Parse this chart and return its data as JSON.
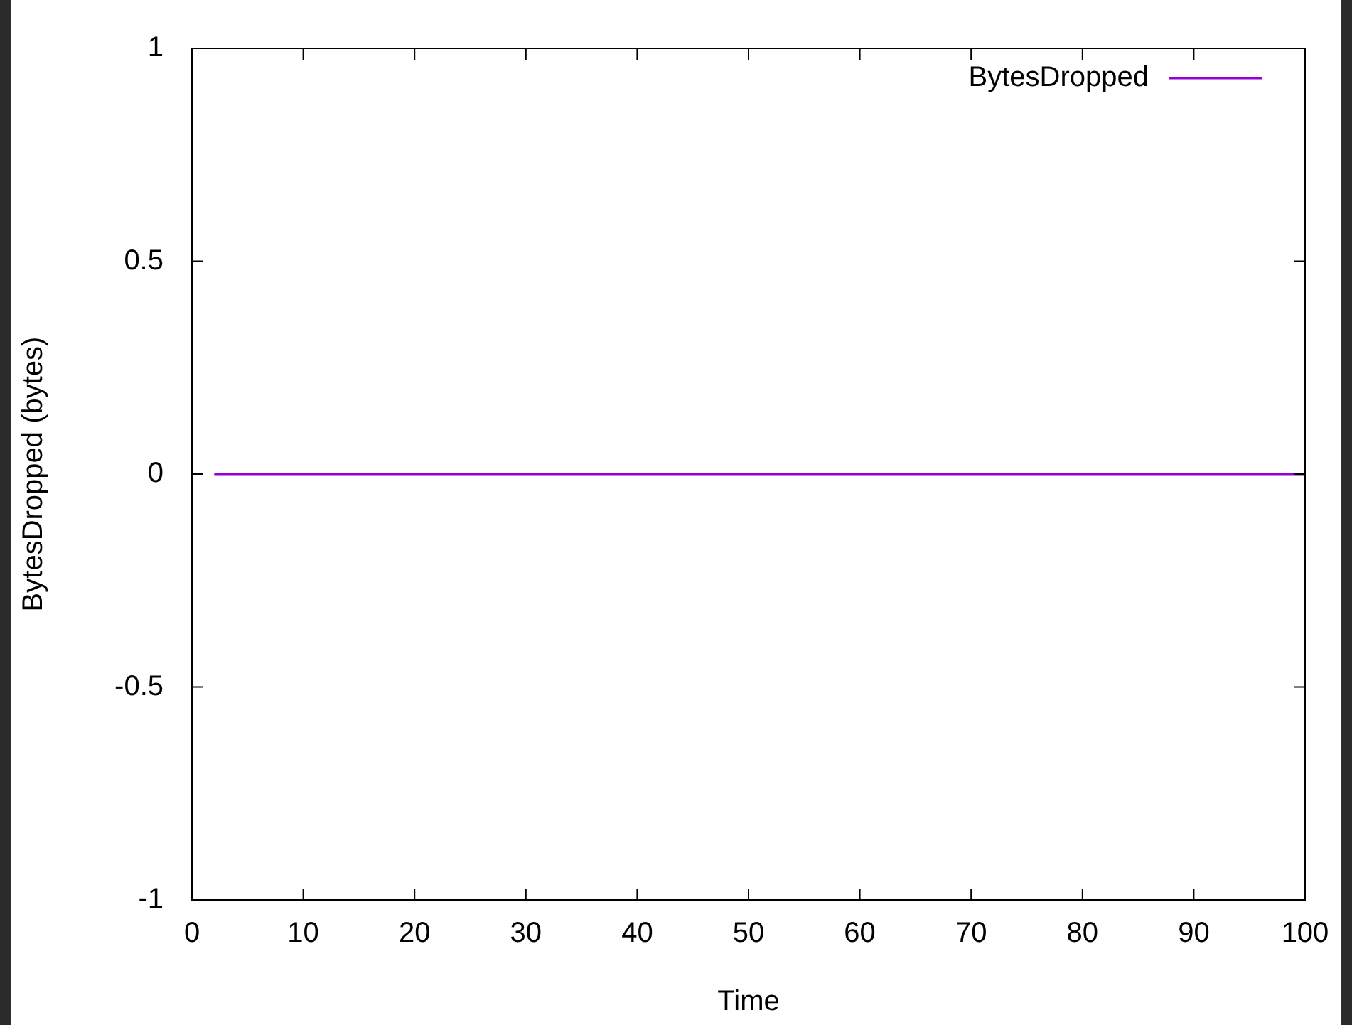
{
  "chart_data": {
    "type": "line",
    "xlabel": "Time",
    "ylabel": "BytesDropped (bytes)",
    "x": [
      2,
      100
    ],
    "series": [
      {
        "name": "BytesDropped",
        "color": "#9400d3",
        "values": [
          0,
          0
        ]
      }
    ],
    "xlim": [
      0,
      100
    ],
    "xticks": [
      0,
      10,
      20,
      30,
      40,
      50,
      60,
      70,
      80,
      90,
      100
    ],
    "ylim": [
      -1,
      1
    ],
    "yticks": [
      -1,
      -0.5,
      0,
      0.5,
      1
    ],
    "grid": false,
    "legend": "top right",
    "marker": "none",
    "line_style": "solid"
  }
}
